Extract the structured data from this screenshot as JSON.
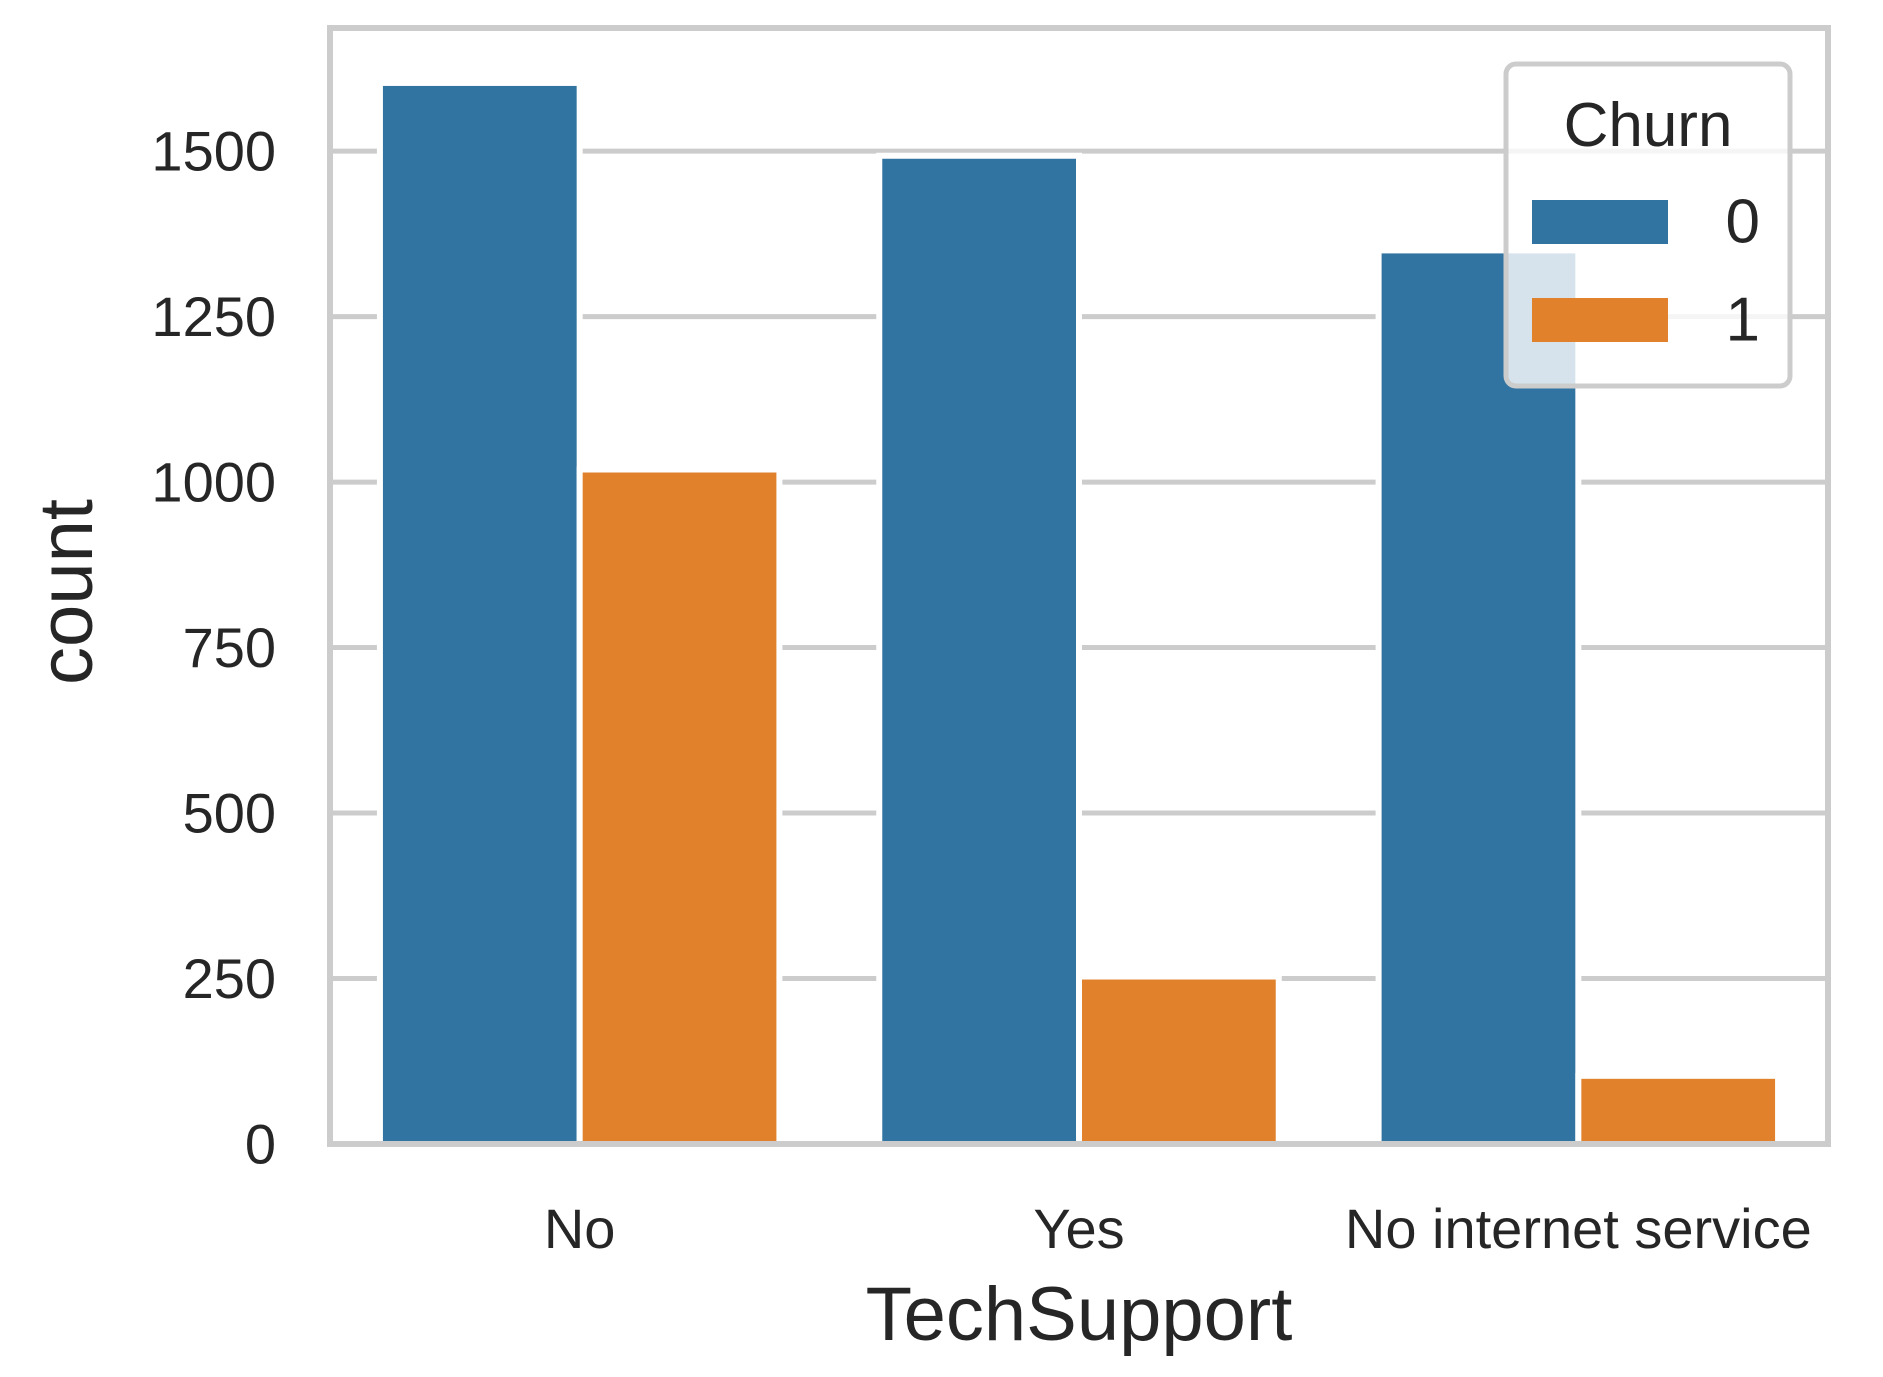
{
  "chart_data": {
    "type": "bar",
    "xlabel": "TechSupport",
    "ylabel": "count",
    "categories": [
      "No",
      "Yes",
      "No internet service"
    ],
    "series": [
      {
        "name": "0",
        "values": [
          1603,
          1493,
          1350
        ],
        "color": "#3274a1"
      },
      {
        "name": "1",
        "values": [
          1019,
          253,
          103
        ],
        "color": "#e1812c"
      }
    ],
    "ylim": [
      0,
      1686
    ],
    "yticks": [
      0,
      250,
      500,
      750,
      1000,
      1250,
      1500
    ],
    "grid": true,
    "legend": {
      "title": "Churn",
      "position": "top-right"
    }
  }
}
